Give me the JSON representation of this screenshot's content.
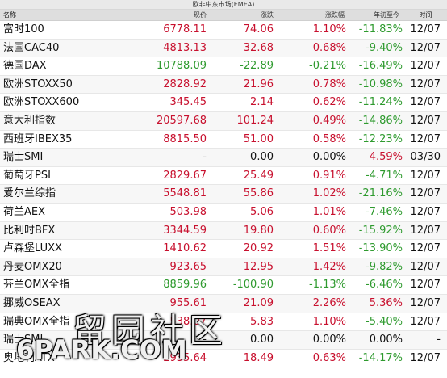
{
  "table_title": "欧非中东市场(EMEA)",
  "headers": {
    "name": "名称",
    "price": "现价",
    "chg": "涨跌",
    "pct": "涨跌幅",
    "ytd": "年初至今",
    "time": "时间"
  },
  "rows": [
    {
      "name": "富时100",
      "price": "6778.11",
      "chg": "74.06",
      "pct": "1.10%",
      "ytd": "-11.83%",
      "time": "12/07",
      "dir": "up",
      "ytd_dir": "down"
    },
    {
      "name": "法国CAC40",
      "price": "4813.13",
      "chg": "32.68",
      "pct": "0.68%",
      "ytd": "-9.40%",
      "time": "12/07",
      "dir": "up",
      "ytd_dir": "down"
    },
    {
      "name": "德国DAX",
      "price": "10788.09",
      "chg": "-22.89",
      "pct": "-0.21%",
      "ytd": "-16.49%",
      "time": "12/07",
      "dir": "down",
      "ytd_dir": "down"
    },
    {
      "name": "欧洲STOXX50",
      "price": "2828.92",
      "chg": "21.96",
      "pct": "0.78%",
      "ytd": "-10.98%",
      "time": "12/07",
      "dir": "up",
      "ytd_dir": "down"
    },
    {
      "name": "欧洲STOXX600",
      "price": "345.45",
      "chg": "2.14",
      "pct": "0.62%",
      "ytd": "-11.24%",
      "time": "12/07",
      "dir": "up",
      "ytd_dir": "down"
    },
    {
      "name": "意大利指数",
      "price": "20597.68",
      "chg": "101.24",
      "pct": "0.49%",
      "ytd": "-14.86%",
      "time": "12/07",
      "dir": "up",
      "ytd_dir": "down"
    },
    {
      "name": "西班牙IBEX35",
      "price": "8815.50",
      "chg": "51.00",
      "pct": "0.58%",
      "ytd": "-12.23%",
      "time": "12/07",
      "dir": "up",
      "ytd_dir": "down"
    },
    {
      "name": "瑞士SMI",
      "price": "-",
      "chg": "0.00",
      "pct": "0.00%",
      "ytd": "4.59%",
      "time": "03/30",
      "dir": "flat",
      "ytd_dir": "up"
    },
    {
      "name": "葡萄牙PSI",
      "price": "2829.67",
      "chg": "25.49",
      "pct": "0.91%",
      "ytd": "-4.71%",
      "time": "12/07",
      "dir": "up",
      "ytd_dir": "down"
    },
    {
      "name": "爱尔兰综指",
      "price": "5548.81",
      "chg": "55.86",
      "pct": "1.02%",
      "ytd": "-21.16%",
      "time": "12/07",
      "dir": "up",
      "ytd_dir": "down"
    },
    {
      "name": "荷兰AEX",
      "price": "503.98",
      "chg": "5.06",
      "pct": "1.01%",
      "ytd": "-7.46%",
      "time": "12/07",
      "dir": "up",
      "ytd_dir": "down"
    },
    {
      "name": "比利时BFX",
      "price": "3344.59",
      "chg": "19.80",
      "pct": "0.60%",
      "ytd": "-15.92%",
      "time": "12/07",
      "dir": "up",
      "ytd_dir": "down"
    },
    {
      "name": "卢森堡LUXX",
      "price": "1410.62",
      "chg": "20.92",
      "pct": "1.51%",
      "ytd": "-13.90%",
      "time": "12/07",
      "dir": "up",
      "ytd_dir": "down"
    },
    {
      "name": "丹麦OMX20",
      "price": "923.65",
      "chg": "12.95",
      "pct": "1.42%",
      "ytd": "-9.82%",
      "time": "12/07",
      "dir": "up",
      "ytd_dir": "down"
    },
    {
      "name": "芬兰OMX全指",
      "price": "8859.96",
      "chg": "-100.90",
      "pct": "-1.13%",
      "ytd": "-6.46%",
      "time": "12/07",
      "dir": "down",
      "ytd_dir": "down"
    },
    {
      "name": "挪威OSEAX",
      "price": "955.61",
      "chg": "21.09",
      "pct": "2.26%",
      "ytd": "5.36%",
      "time": "12/07",
      "dir": "up",
      "ytd_dir": "up"
    },
    {
      "name": "瑞典OMX全指",
      "price": "538.07",
      "chg": "5.83",
      "pct": "1.10%",
      "ytd": "-5.40%",
      "time": "12/07",
      "dir": "up",
      "ytd_dir": "down"
    },
    {
      "name": "瑞士SMI",
      "price": "-",
      "chg": "0.00",
      "pct": "0.00%",
      "ytd": "0.00%",
      "time": "-",
      "dir": "flat",
      "ytd_dir": "flat"
    },
    {
      "name": "奥地利ATX",
      "price": "2935.64",
      "chg": "18.49",
      "pct": "0.63%",
      "ytd": "-14.17%",
      "time": "12/07",
      "dir": "up",
      "ytd_dir": "down"
    }
  ],
  "watermark": {
    "cn": "留园社区",
    "en": "6PARK.COM"
  },
  "colors": {
    "up": "#c8102e",
    "down": "#2e9a2e",
    "flat": "#111111"
  }
}
